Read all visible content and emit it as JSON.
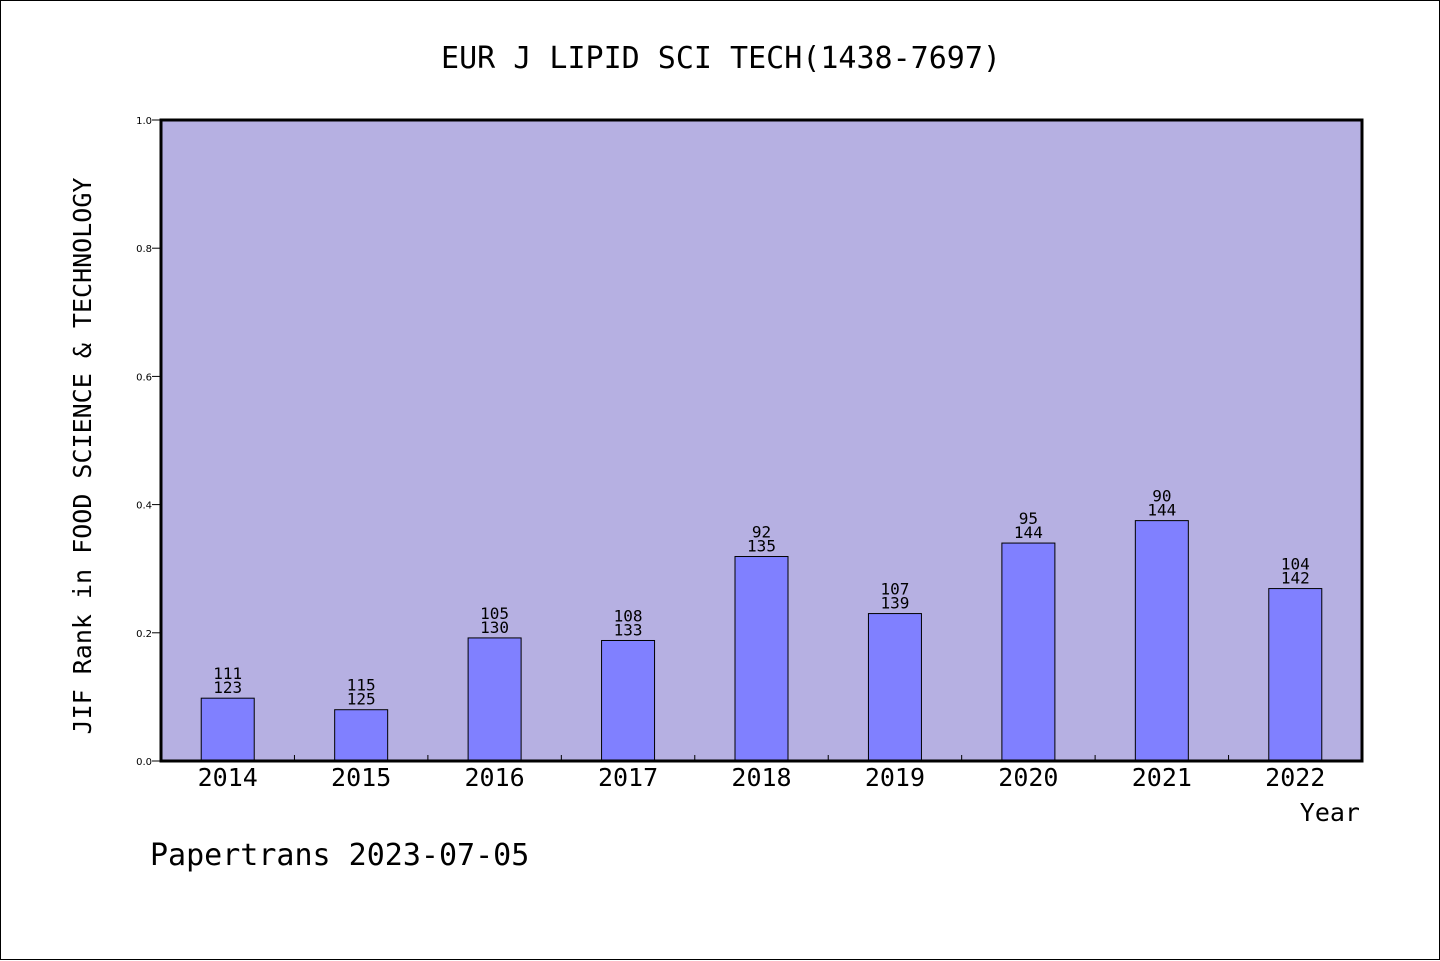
{
  "chart_data": {
    "type": "bar",
    "title": "EUR J LIPID SCI TECH(1438-7697)",
    "xlabel": "Year",
    "ylabel": "JIF Rank in FOOD SCIENCE & TECHNOLOGY",
    "ylim": [
      0,
      1.0
    ],
    "yticks": [
      "0.0",
      "0.2",
      "0.4",
      "0.6",
      "0.8",
      "1.0"
    ],
    "grid": false,
    "categories": [
      "2014",
      "2015",
      "2016",
      "2017",
      "2018",
      "2019",
      "2020",
      "2021",
      "2022"
    ],
    "values": [
      0.098,
      0.08,
      0.192,
      0.188,
      0.319,
      0.23,
      0.34,
      0.375,
      0.269
    ],
    "rank": [
      "111",
      "115",
      "105",
      "108",
      "92",
      "107",
      "95",
      "90",
      "104"
    ],
    "total": [
      "123",
      "125",
      "130",
      "133",
      "135",
      "139",
      "144",
      "144",
      "142"
    ],
    "colors": {
      "plot_bg": "#b6b0e2",
      "bar": "#8080ff",
      "axis": "#000000"
    }
  },
  "footer": "Papertrans 2023-07-05"
}
